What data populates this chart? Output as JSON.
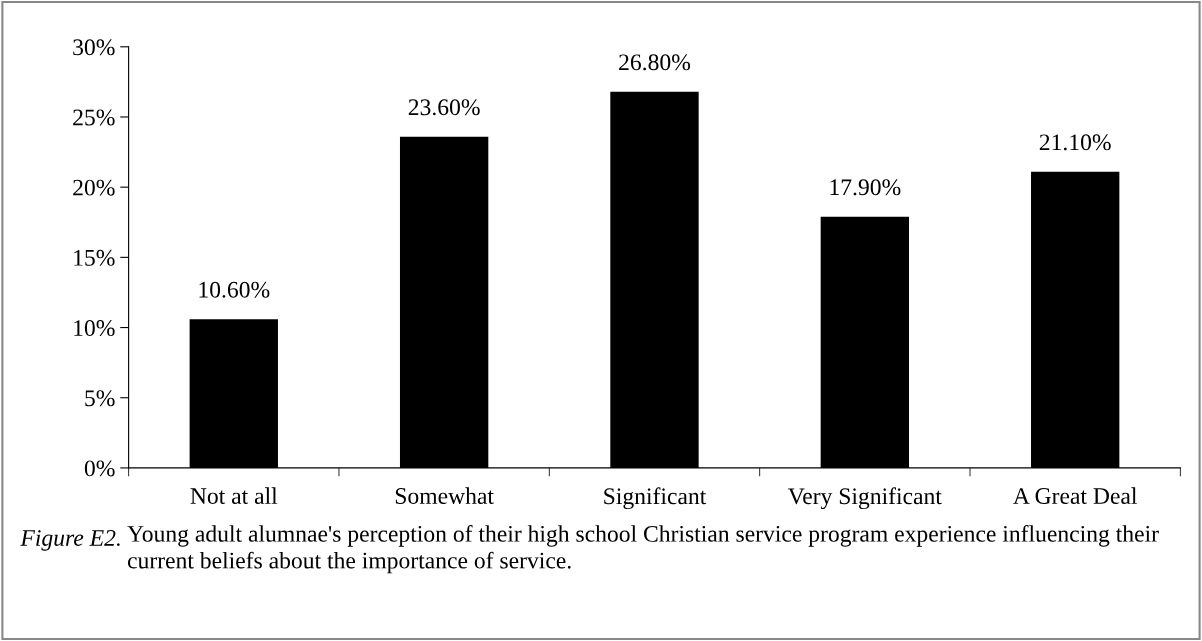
{
  "chart_data": {
    "type": "bar",
    "categories": [
      "Not at all",
      "Somewhat",
      "Significant",
      "Very Significant",
      "A Great Deal"
    ],
    "values": [
      10.6,
      23.6,
      26.8,
      17.9,
      21.1
    ],
    "color": "#000000",
    "value_labels": [
      "10.60%",
      "23.60%",
      "26.80%",
      "17.90%",
      "21.10%"
    ],
    "ylim": [
      0,
      30
    ],
    "yticks": [
      {
        "value": 0,
        "label": "0%"
      },
      {
        "value": 5,
        "label": "5%"
      },
      {
        "value": 10,
        "label": "10%"
      },
      {
        "value": 15,
        "label": "15%"
      },
      {
        "value": 20,
        "label": "20%"
      },
      {
        "value": 25,
        "label": "25%"
      },
      {
        "value": 30,
        "label": "30%"
      }
    ],
    "grid": false,
    "legend": false,
    "annotations": [
      "Figure E2.",
      "Young adult alumnae's perception of their high school Christian service program experience influencing their current beliefs about the importance of service."
    ]
  }
}
